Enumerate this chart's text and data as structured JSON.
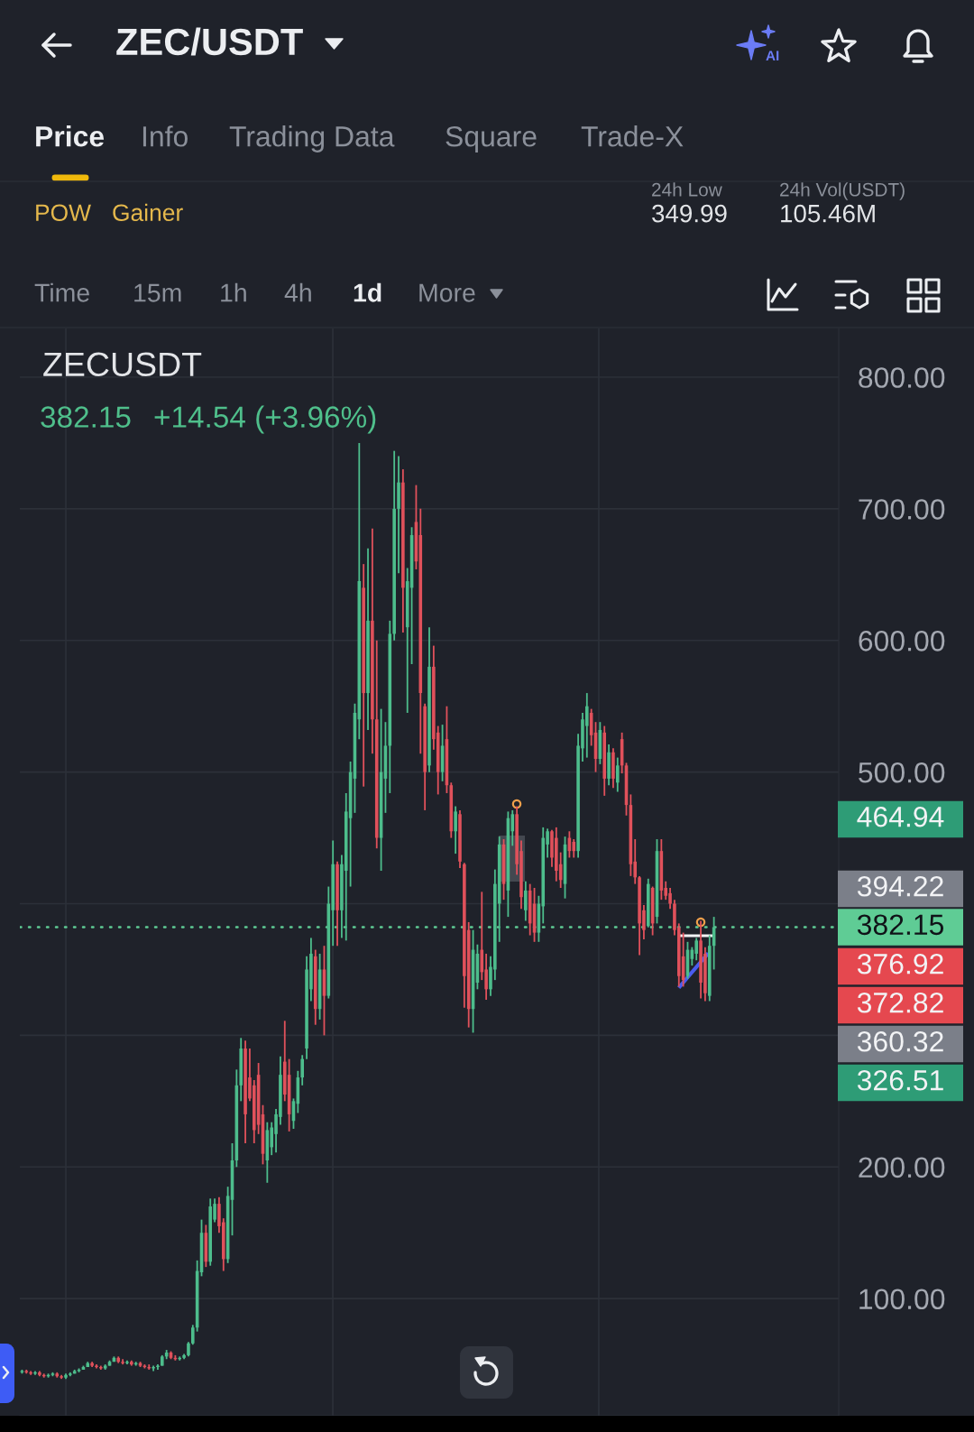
{
  "chart_data": {
    "type": "candlestick",
    "title": "ZEC/USDT",
    "subtitle": "ZECUSDT",
    "annotations": [
      "AI",
      "Price",
      "Info",
      "Trading Data",
      "Square",
      "Trade-X",
      "POW",
      "Gainer",
      "24h Low",
      "349.99",
      "24h Vol(USDT)",
      "105.46M",
      "Time",
      "15m",
      "1h",
      "4h",
      "1d",
      "More",
      "382.15",
      "+14.54 (+3.96%)",
      "464.94",
      "394.22",
      "376.92",
      "372.82",
      "360.32",
      "326.51"
    ],
    "categories": [
      null,
      null,
      null,
      null,
      null,
      null,
      null,
      null,
      null,
      null,
      null,
      null,
      null,
      null,
      null,
      null,
      null,
      null,
      null,
      null,
      null,
      null,
      null,
      null,
      null,
      null,
      null,
      null,
      null,
      null,
      null,
      null,
      null,
      null,
      null,
      null,
      null,
      null,
      null,
      null,
      null,
      null,
      null,
      null,
      null,
      null,
      null,
      null,
      null,
      null,
      null,
      null,
      null,
      null,
      null,
      null,
      null,
      null,
      null,
      null,
      null,
      null,
      null,
      null,
      null,
      null,
      null,
      null,
      null,
      null,
      null,
      null,
      null,
      null,
      null,
      null,
      null,
      null,
      null,
      null,
      null,
      null,
      null,
      null,
      null,
      null,
      null,
      null,
      null,
      null,
      null,
      null,
      null,
      null,
      null,
      null,
      null,
      null,
      null,
      null,
      null,
      null,
      null,
      null,
      null,
      null,
      null,
      null,
      null,
      null,
      null,
      null,
      null,
      null,
      null,
      null,
      null,
      null,
      null,
      null,
      null,
      null,
      null,
      null,
      null,
      null,
      null,
      null,
      null,
      null,
      null,
      null,
      null,
      null,
      null,
      null,
      null,
      null,
      null,
      null,
      null,
      null,
      null,
      null,
      null,
      null,
      null,
      null,
      null,
      null,
      null,
      null,
      null,
      null,
      null,
      null,
      null,
      null,
      null,
      null,
      null,
      null,
      null,
      null,
      null,
      null,
      null,
      null,
      null,
      null,
      null,
      null,
      null,
      null,
      null,
      null,
      null,
      null,
      null,
      null,
      null,
      null,
      null,
      null,
      null,
      null,
      null
    ],
    "ohlc": [
      [
        44,
        46,
        43,
        45
      ],
      [
        45,
        46,
        43,
        44
      ],
      [
        44,
        45,
        42,
        43
      ],
      [
        43,
        45,
        42,
        44
      ],
      [
        44,
        45,
        41,
        42
      ],
      [
        42,
        43,
        40,
        41
      ],
      [
        41,
        43,
        40,
        42
      ],
      [
        42,
        44,
        41,
        43
      ],
      [
        43,
        44,
        40,
        41
      ],
      [
        41,
        42,
        39,
        40
      ],
      [
        40,
        43,
        39,
        42
      ],
      [
        42,
        44,
        41,
        43
      ],
      [
        43,
        46,
        43,
        45
      ],
      [
        45,
        47,
        44,
        46
      ],
      [
        46,
        49,
        46,
        48
      ],
      [
        48,
        52,
        48,
        51
      ],
      [
        51,
        52,
        48,
        49
      ],
      [
        49,
        50,
        47,
        48
      ],
      [
        48,
        49,
        46,
        47
      ],
      [
        47,
        50,
        46,
        49
      ],
      [
        49,
        53,
        49,
        52
      ],
      [
        52,
        56,
        52,
        55
      ],
      [
        55,
        56,
        51,
        52
      ],
      [
        52,
        54,
        50,
        51
      ],
      [
        51,
        53,
        50,
        52
      ],
      [
        52,
        53,
        49,
        50
      ],
      [
        50,
        52,
        49,
        51
      ],
      [
        51,
        52,
        48,
        49
      ],
      [
        49,
        50,
        47,
        48
      ],
      [
        48,
        50,
        46,
        47
      ],
      [
        47,
        49,
        45,
        48
      ],
      [
        48,
        50,
        46,
        49
      ],
      [
        49,
        57,
        49,
        56
      ],
      [
        56,
        61,
        54,
        59
      ],
      [
        59,
        60,
        54,
        55
      ],
      [
        55,
        57,
        53,
        54
      ],
      [
        54,
        56,
        53,
        55
      ],
      [
        55,
        58,
        54,
        57
      ],
      [
        57,
        67,
        56,
        66
      ],
      [
        66,
        80,
        65,
        78
      ],
      [
        78,
        129,
        75,
        121
      ],
      [
        120,
        160,
        117,
        150
      ],
      [
        150,
        156,
        124,
        128
      ],
      [
        128,
        176,
        125,
        170
      ],
      [
        160,
        176,
        158,
        172
      ],
      [
        172,
        177,
        150,
        155
      ],
      [
        158,
        161,
        121,
        130
      ],
      [
        130,
        185,
        127,
        178
      ],
      [
        175,
        218,
        148,
        205
      ],
      [
        205,
        274,
        200,
        262
      ],
      [
        262,
        298,
        250,
        290
      ],
      [
        290,
        296,
        218,
        240
      ],
      [
        268,
        290,
        250,
        252
      ],
      [
        262,
        266,
        218,
        228
      ],
      [
        270,
        279,
        225,
        232
      ],
      [
        240,
        247,
        202,
        210
      ],
      [
        205,
        234,
        188,
        228
      ],
      [
        215,
        234,
        209,
        230
      ],
      [
        225,
        244,
        211,
        240
      ],
      [
        238,
        284,
        232,
        270
      ],
      [
        280,
        311,
        250,
        255
      ],
      [
        270,
        282,
        227,
        240
      ],
      [
        235,
        252,
        229,
        250
      ],
      [
        248,
        273,
        241,
        268
      ],
      [
        268,
        285,
        262,
        282
      ],
      [
        290,
        360,
        282,
        350
      ],
      [
        335,
        374,
        326,
        362
      ],
      [
        360,
        365,
        308,
        320
      ],
      [
        320,
        362,
        312,
        350
      ],
      [
        350,
        368,
        300,
        330
      ],
      [
        330,
        413,
        328,
        400
      ],
      [
        395,
        448,
        368,
        430
      ],
      [
        430,
        432,
        368,
        395
      ],
      [
        395,
        437,
        374,
        430
      ],
      [
        425,
        484,
        372,
        470
      ],
      [
        465,
        508,
        413,
        500
      ],
      [
        495,
        552,
        469,
        545
      ],
      [
        540,
        750,
        525,
        645
      ],
      [
        640,
        658,
        489,
        560
      ],
      [
        560,
        670,
        532,
        615
      ],
      [
        615,
        685,
        514,
        540
      ],
      [
        540,
        600,
        442,
        450
      ],
      [
        450,
        548,
        425,
        500
      ],
      [
        495,
        538,
        469,
        520
      ],
      [
        520,
        615,
        484,
        605
      ],
      [
        605,
        744,
        600,
        700
      ],
      [
        700,
        740,
        651,
        720
      ],
      [
        720,
        730,
        606,
        640
      ],
      [
        610,
        655,
        545,
        645
      ],
      [
        640,
        686,
        582,
        680
      ],
      [
        690,
        718,
        654,
        660
      ],
      [
        680,
        700,
        514,
        560
      ],
      [
        550,
        552,
        471,
        500
      ],
      [
        505,
        610,
        500,
        580
      ],
      [
        580,
        596,
        517,
        525
      ],
      [
        530,
        535,
        483,
        500
      ],
      [
        500,
        536,
        493,
        520
      ],
      [
        525,
        550,
        484,
        490
      ],
      [
        490,
        492,
        450,
        455
      ],
      [
        455,
        474,
        438,
        470
      ],
      [
        468,
        471,
        427,
        432
      ],
      [
        430,
        431,
        321,
        345
      ],
      [
        380,
        386,
        306,
        320
      ],
      [
        320,
        380,
        302,
        365
      ],
      [
        340,
        369,
        335,
        362
      ],
      [
        365,
        409,
        342,
        348
      ],
      [
        350,
        362,
        327,
        335
      ],
      [
        335,
        360,
        330,
        352
      ],
      [
        350,
        426,
        342,
        415
      ],
      [
        400,
        451,
        371,
        445
      ],
      [
        445,
        449,
        403,
        415
      ],
      [
        410,
        470,
        390,
        465
      ],
      [
        455,
        471,
        444,
        468
      ],
      [
        468,
        474,
        422,
        430
      ],
      [
        440,
        448,
        396,
        405
      ],
      [
        395,
        417,
        387,
        410
      ],
      [
        410,
        415,
        376,
        385
      ],
      [
        400,
        412,
        371,
        378
      ],
      [
        378,
        406,
        371,
        400
      ],
      [
        398,
        458,
        385,
        450
      ],
      [
        445,
        457,
        435,
        455
      ],
      [
        455,
        456,
        428,
        435
      ],
      [
        450,
        458,
        417,
        425
      ],
      [
        430,
        439,
        412,
        418
      ],
      [
        415,
        451,
        404,
        445
      ],
      [
        450,
        455,
        435,
        440
      ],
      [
        447,
        449,
        435,
        440
      ],
      [
        440,
        529,
        435,
        520
      ],
      [
        518,
        545,
        508,
        540
      ],
      [
        535,
        560,
        511,
        550
      ],
      [
        545,
        548,
        520,
        528
      ],
      [
        530,
        538,
        500,
        510
      ],
      [
        510,
        538,
        506,
        532
      ],
      [
        530,
        535,
        482,
        495
      ],
      [
        495,
        521,
        490,
        515
      ],
      [
        515,
        518,
        488,
        495
      ],
      [
        492,
        511,
        485,
        505
      ],
      [
        525,
        530,
        499,
        505
      ],
      [
        505,
        507,
        467,
        475
      ],
      [
        475,
        483,
        421,
        430
      ],
      [
        432,
        449,
        415,
        420
      ],
      [
        420,
        421,
        361,
        385
      ],
      [
        395,
        399,
        373,
        380
      ],
      [
        383,
        419,
        382,
        415
      ],
      [
        412,
        413,
        376,
        385
      ],
      [
        390,
        449,
        385,
        440
      ],
      [
        440,
        449,
        403,
        410
      ],
      [
        412,
        417,
        403,
        406
      ],
      [
        408,
        412,
        396,
        400
      ],
      [
        400,
        403,
        376,
        380
      ],
      [
        382,
        385,
        337,
        345
      ],
      [
        360,
        378,
        337,
        342
      ],
      [
        345,
        371,
        343,
        365
      ],
      [
        358,
        367,
        353,
        365
      ],
      [
        362,
        374,
        357,
        372
      ],
      [
        372,
        387,
        328,
        340
      ],
      [
        362,
        367,
        326,
        332
      ],
      [
        330,
        376,
        326,
        368
      ],
      [
        368,
        390,
        350,
        382.15
      ],
      null,
      null,
      null,
      null,
      null,
      null,
      null,
      null,
      null,
      null,
      null,
      null,
      null,
      null,
      null,
      null,
      null,
      null,
      null,
      null,
      null,
      null,
      null,
      null,
      null,
      null,
      null,
      null
    ],
    "colors": [
      "#4dbd8c",
      "#e0515b",
      "#e0515b",
      "#4dbd8c",
      "#e0515b",
      "#e0515b",
      "#4dbd8c",
      "#4dbd8c",
      "#e0515b",
      "#e0515b",
      "#4dbd8c",
      "#4dbd8c",
      "#4dbd8c",
      "#4dbd8c",
      "#4dbd8c",
      "#4dbd8c",
      "#e0515b",
      "#e0515b",
      "#e0515b",
      "#4dbd8c",
      "#4dbd8c",
      "#4dbd8c",
      "#e0515b",
      "#e0515b",
      "#4dbd8c",
      "#e0515b",
      "#4dbd8c",
      "#e0515b",
      "#e0515b",
      "#e0515b",
      "#4dbd8c",
      "#4dbd8c",
      "#4dbd8c",
      "#4dbd8c",
      "#e0515b",
      "#e0515b",
      "#4dbd8c",
      "#4dbd8c",
      "#4dbd8c",
      "#4dbd8c",
      "#4dbd8c",
      "#4dbd8c",
      "#e0515b",
      "#4dbd8c",
      "#4dbd8c",
      "#e0515b",
      "#e0515b",
      "#4dbd8c",
      "#4dbd8c",
      "#4dbd8c",
      "#4dbd8c",
      "#e0515b",
      "#e0515b",
      "#e0515b",
      "#e0515b",
      "#e0515b",
      "#4dbd8c",
      "#4dbd8c",
      "#4dbd8c",
      "#4dbd8c",
      "#e0515b",
      "#e0515b",
      "#4dbd8c",
      "#4dbd8c",
      "#4dbd8c",
      "#4dbd8c",
      "#4dbd8c",
      "#e0515b",
      "#4dbd8c",
      "#e0515b",
      "#4dbd8c",
      "#4dbd8c",
      "#e0515b",
      "#4dbd8c",
      "#4dbd8c",
      "#4dbd8c",
      "#4dbd8c",
      "#4dbd8c",
      "#e0515b",
      "#4dbd8c",
      "#e0515b",
      "#e0515b",
      "#4dbd8c",
      "#4dbd8c",
      "#4dbd8c",
      "#4dbd8c",
      "#4dbd8c",
      "#e0515b",
      "#4dbd8c",
      "#4dbd8c",
      "#e0515b",
      "#e0515b",
      "#e0515b",
      "#4dbd8c",
      "#e0515b",
      "#e0515b",
      "#4dbd8c",
      "#e0515b",
      "#e0515b",
      "#4dbd8c",
      "#e0515b",
      "#e0515b",
      "#e0515b",
      "#4dbd8c",
      "#4dbd8c",
      "#e0515b",
      "#e0515b",
      "#4dbd8c",
      "#4dbd8c",
      "#4dbd8c",
      "#e0515b",
      "#4dbd8c",
      "#4dbd8c",
      "#e0515b",
      "#e0515b",
      "#4dbd8c",
      "#e0515b",
      "#e0515b",
      "#4dbd8c",
      "#4dbd8c",
      "#4dbd8c",
      "#e0515b",
      "#e0515b",
      "#e0515b",
      "#4dbd8c",
      "#e0515b",
      "#e0515b",
      "#4dbd8c",
      "#4dbd8c",
      "#4dbd8c",
      "#e0515b",
      "#e0515b",
      "#4dbd8c",
      "#e0515b",
      "#4dbd8c",
      "#e0515b",
      "#4dbd8c",
      "#e0515b",
      "#e0515b",
      "#e0515b",
      "#e0515b",
      "#e0515b",
      "#e0515b",
      "#4dbd8c",
      "#e0515b",
      "#4dbd8c",
      "#e0515b",
      "#e0515b",
      "#e0515b",
      "#e0515b",
      "#e0515b",
      "#e0515b",
      "#4dbd8c",
      "#4dbd8c",
      "#4dbd8c",
      "#e0515b",
      "#e0515b",
      "#4dbd8c",
      "#4dbd8c",
      null,
      null,
      null,
      null,
      null,
      null,
      null,
      null,
      null,
      null,
      null,
      null,
      null,
      null,
      null,
      null,
      null,
      null,
      null,
      null,
      null,
      null,
      null,
      null,
      null,
      null,
      null,
      null
    ],
    "ylim": [
      11,
      837
    ],
    "yticks": [
      {
        "value": 800,
        "label": "800.00"
      },
      {
        "value": 700,
        "label": "700.00"
      },
      {
        "value": 600,
        "label": "600.00"
      },
      {
        "value": 500,
        "label": "500.00"
      },
      {
        "value": 400,
        "label": null
      },
      {
        "value": 300,
        "label": null
      },
      {
        "value": 200,
        "label": "200.00"
      },
      {
        "value": 100,
        "label": "100.00"
      }
    ],
    "grid": "y",
    "tick_labels": "y",
    "ref_lines": [
      {
        "axis": "y",
        "value": 382.15,
        "label": "382.15",
        "color": "#5fcc95",
        "line_style": "dotted"
      }
    ]
  }
}
